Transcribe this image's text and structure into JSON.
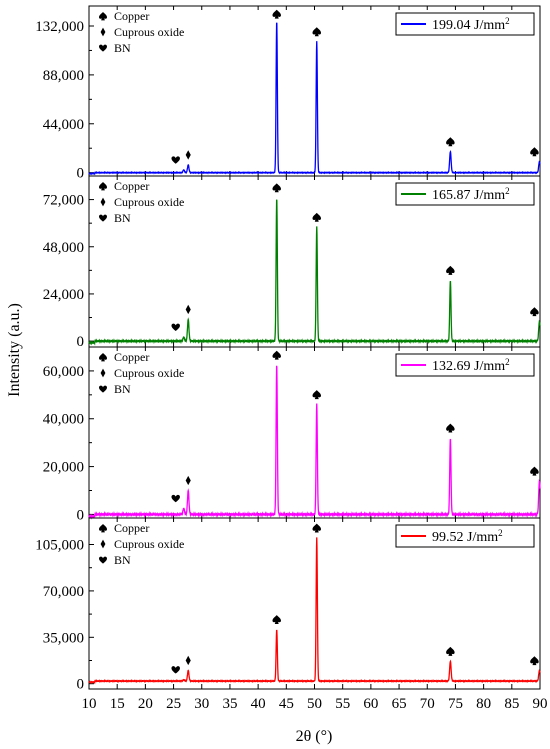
{
  "chart_data": {
    "type": "line",
    "xlabel": "2θ (°)",
    "ylabel": "Intensity (a.u.)",
    "xlim": [
      10,
      90
    ],
    "xticks": [
      10,
      15,
      20,
      25,
      30,
      35,
      40,
      45,
      50,
      55,
      60,
      65,
      70,
      75,
      80,
      85,
      90
    ],
    "xtick_labels": [
      "10",
      "15",
      "20",
      "25",
      "30",
      "35",
      "40",
      "45",
      "50",
      "55",
      "60",
      "65",
      "70",
      "75",
      "80",
      "85",
      "90"
    ],
    "legend_entries": [
      {
        "symbol": "spade",
        "label": "Copper"
      },
      {
        "symbol": "diamond",
        "label": "Cuprous oxide"
      },
      {
        "symbol": "heart",
        "label": "BN"
      }
    ],
    "panels": [
      {
        "series_name": "199.04 J/mm",
        "series_unit_sup": "2",
        "color": "#0000ff",
        "ylim": [
          -3000,
          150000
        ],
        "yticks": [
          0,
          44000,
          88000,
          132000
        ],
        "ytick_labels": [
          "0",
          "44,000",
          "88,000",
          "132,000"
        ],
        "baseline": 0,
        "peaks": [
          {
            "x": 26.8,
            "y": 2500,
            "symbol": "heart"
          },
          {
            "x": 27.6,
            "y": 7000,
            "symbol": "diamond"
          },
          {
            "x": 43.3,
            "y": 137000,
            "symbol": "spade"
          },
          {
            "x": 50.4,
            "y": 118000,
            "symbol": "spade"
          },
          {
            "x": 74.1,
            "y": 19000,
            "symbol": "spade"
          },
          {
            "x": 89.9,
            "y": 10000,
            "symbol": "spade"
          }
        ]
      },
      {
        "series_name": "165.87 J/mm",
        "series_unit_sup": "2",
        "color": "#008000",
        "ylim": [
          -3000,
          84000
        ],
        "yticks": [
          0,
          24000,
          48000,
          72000
        ],
        "ytick_labels": [
          "0",
          "24,000",
          "48,000",
          "72,000"
        ],
        "baseline": 0,
        "peaks": [
          {
            "x": 26.8,
            "y": 2000,
            "symbol": "heart"
          },
          {
            "x": 27.6,
            "y": 11000,
            "symbol": "diamond"
          },
          {
            "x": 43.3,
            "y": 73000,
            "symbol": "spade"
          },
          {
            "x": 50.4,
            "y": 58000,
            "symbol": "spade"
          },
          {
            "x": 74.1,
            "y": 31000,
            "symbol": "spade"
          },
          {
            "x": 89.9,
            "y": 10000,
            "symbol": "spade"
          }
        ]
      },
      {
        "series_name": "132.69 J/mm",
        "series_unit_sup": "2",
        "color": "#ff00ff",
        "ylim": [
          -1500,
          70000
        ],
        "yticks": [
          0,
          20000,
          40000,
          60000
        ],
        "ytick_labels": [
          "0",
          "20,000",
          "40,000",
          "60,000"
        ],
        "baseline": 0,
        "peaks": [
          {
            "x": 26.8,
            "y": 2500,
            "symbol": "heart"
          },
          {
            "x": 27.6,
            "y": 10000,
            "symbol": "diamond"
          },
          {
            "x": 43.3,
            "y": 63000,
            "symbol": "spade"
          },
          {
            "x": 50.4,
            "y": 46000,
            "symbol": "spade"
          },
          {
            "x": 74.1,
            "y": 32000,
            "symbol": "spade"
          },
          {
            "x": 89.9,
            "y": 14000,
            "symbol": "spade"
          }
        ]
      },
      {
        "series_name": "99.52 J/mm",
        "series_unit_sup": "2",
        "color": "#ff0000",
        "ylim": [
          -4000,
          125000
        ],
        "yticks": [
          0,
          35000,
          70000,
          105000
        ],
        "ytick_labels": [
          "0",
          "35,000",
          "70,000",
          "105,000"
        ],
        "baseline": 2000,
        "peaks": [
          {
            "x": 26.8,
            "y": 3000,
            "symbol": "heart"
          },
          {
            "x": 27.6,
            "y": 10000,
            "symbol": "diamond"
          },
          {
            "x": 43.3,
            "y": 41000,
            "symbol": "spade"
          },
          {
            "x": 50.4,
            "y": 110000,
            "symbol": "spade"
          },
          {
            "x": 74.1,
            "y": 17000,
            "symbol": "spade"
          },
          {
            "x": 89.9,
            "y": 10000,
            "symbol": "spade"
          }
        ]
      }
    ]
  }
}
